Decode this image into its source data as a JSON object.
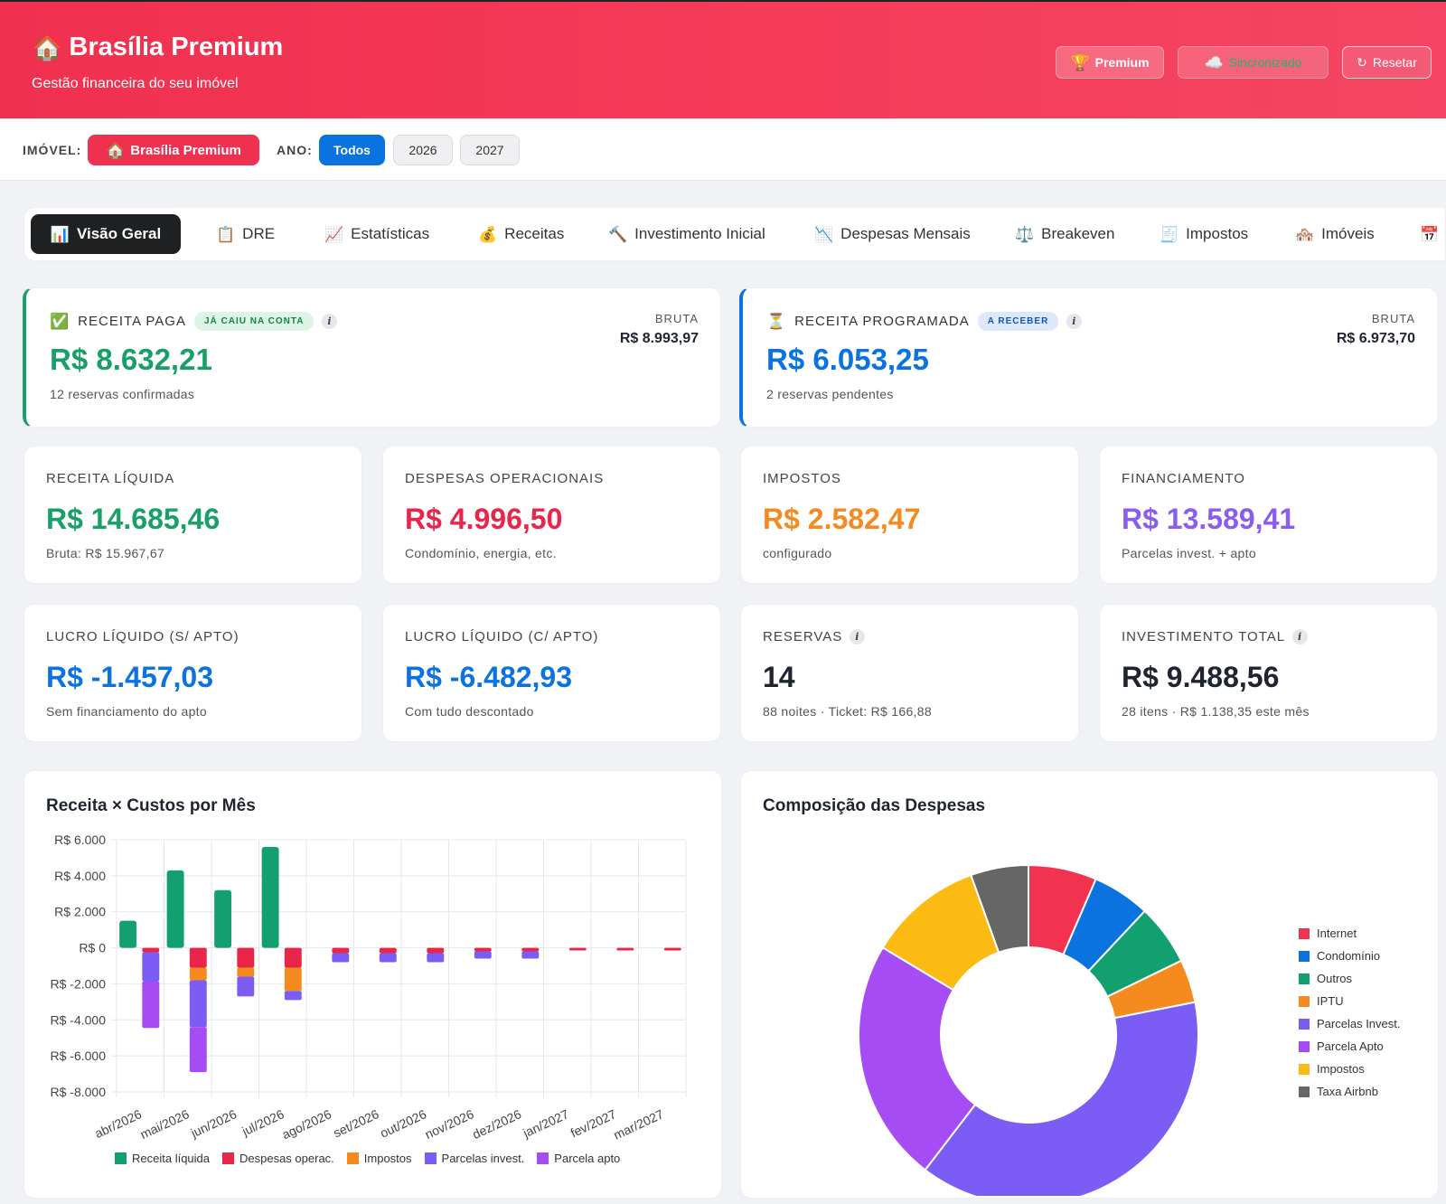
{
  "header": {
    "title": "Brasília Premium",
    "subtitle": "Gestão financeira do seu imóvel",
    "premium_label": "Premium",
    "sync_label": "Sincronizado",
    "reset_label": "Resetar"
  },
  "filters": {
    "property_label": "IMÓVEL:",
    "property_value": "Brasília Premium",
    "year_label": "ANO:",
    "years": [
      "Todos",
      "2026",
      "2027"
    ],
    "active_year": "Todos"
  },
  "tabs": [
    "Visão Geral",
    "DRE",
    "Estatísticas",
    "Receitas",
    "Investimento Inicial",
    "Despesas Mensais",
    "Breakeven",
    "Impostos",
    "Imóveis"
  ],
  "tab_icons": [
    "chart-icon",
    "clipboard-icon",
    "trend-icon",
    "money-bag-icon",
    "hammer-icon",
    "chart-down-icon",
    "scale-icon",
    "receipt-icon",
    "house-icon"
  ],
  "hero": {
    "paid": {
      "label": "RECEITA PAGA",
      "badge": "JÁ CAIU NA CONTA",
      "value": "R$ 8.632,21",
      "sub": "12 reservas confirmadas",
      "bruta_label": "BRUTA",
      "bruta_value": "R$ 8.993,97",
      "color": "#18a068"
    },
    "scheduled": {
      "label": "RECEITA PROGRAMADA",
      "badge": "A RECEBER",
      "value": "R$ 6.053,25",
      "sub": "2 reservas pendentes",
      "bruta_label": "BRUTA",
      "bruta_value": "R$ 6.973,70",
      "color": "#0a73e0"
    }
  },
  "stats": [
    {
      "label": "RECEITA LÍQUIDA",
      "value": "R$ 14.685,46",
      "sub": "Bruta: R$ 15.967,67",
      "color": "#18a068"
    },
    {
      "label": "DESPESAS OPERACIONAIS",
      "value": "R$ 4.996,50",
      "sub": "Condomínio, energia, etc.",
      "color": "#e8264a"
    },
    {
      "label": "IMPOSTOS",
      "value": "R$ 2.582,47",
      "sub": "configurado",
      "color": "#f58a1f"
    },
    {
      "label": "FINANCIAMENTO",
      "value": "R$ 13.589,41",
      "sub": "Parcelas invest. + apto",
      "color": "#8a5cf0"
    },
    {
      "label": "LUCRO LÍQUIDO (S/ APTO)",
      "value": "R$ -1.457,03",
      "sub": "Sem financiamento do apto",
      "color": "#0a73e0"
    },
    {
      "label": "LUCRO LÍQUIDO (C/ APTO)",
      "value": "R$ -6.482,93",
      "sub": "Com tudo descontado",
      "color": "#0a73e0"
    },
    {
      "label": "RESERVAS",
      "value": "14",
      "sub": "88 noites · Ticket: R$ 166,88",
      "color": "#1f2430"
    },
    {
      "label": "INVESTIMENTO TOTAL",
      "value": "R$ 9.488,56",
      "sub": "28 itens · R$ 1.138,35 este mês",
      "color": "#1f2430"
    }
  ],
  "chart_data": [
    {
      "type": "bar",
      "title": "Receita × Custos por Mês",
      "categories": [
        "abr/2026",
        "mai/2026",
        "jun/2026",
        "jul/2026",
        "ago/2026",
        "set/2026",
        "out/2026",
        "nov/2026",
        "dez/2026",
        "jan/2027",
        "fev/2027",
        "mar/2027"
      ],
      "stacked": true,
      "ylim": [
        -8000,
        6000
      ],
      "yticks": [
        6000,
        4000,
        2000,
        0,
        -2000,
        -4000,
        -6000,
        -8000
      ],
      "ytick_labels": [
        "R$ 6.000",
        "R$ 4.000",
        "R$ 2.000",
        "R$ 0",
        "R$ -2.000",
        "R$ -4.000",
        "R$ -6.000",
        "R$ -8.000"
      ],
      "grid": true,
      "legend_position": "bottom",
      "series": [
        {
          "name": "Receita líquida",
          "color": "#12a070",
          "values": [
            1500,
            4300,
            3200,
            5600,
            0,
            0,
            0,
            0,
            0,
            0,
            0,
            0
          ]
        },
        {
          "name": "Despesas operac.",
          "color": "#e8264a",
          "values": [
            -250,
            -1100,
            -1100,
            -1100,
            -300,
            -300,
            -300,
            -200,
            -200,
            -150,
            -150,
            -150
          ]
        },
        {
          "name": "Impostos",
          "color": "#f58a1f",
          "values": [
            0,
            -700,
            -500,
            -1300,
            0,
            0,
            0,
            0,
            0,
            0,
            0,
            0
          ]
        },
        {
          "name": "Parcelas invest.",
          "color": "#7b5cf5",
          "values": [
            -1600,
            -2600,
            -1100,
            -500,
            -500,
            -500,
            -500,
            -400,
            -400,
            0,
            0,
            0
          ]
        },
        {
          "name": "Parcela apto",
          "color": "#a64cf5",
          "values": [
            -2600,
            -2500,
            0,
            0,
            0,
            0,
            0,
            0,
            0,
            0,
            0,
            0
          ]
        }
      ]
    },
    {
      "type": "pie",
      "title": "Composição das Despesas",
      "donut": true,
      "legend_position": "right",
      "labels": [
        "Internet",
        "Condomínio",
        "Outros",
        "IPTU",
        "Parcelas Invest.",
        "Parcela Apto",
        "Impostos",
        "Taxa Airbnb"
      ],
      "colors": [
        "#f2334f",
        "#0a73e0",
        "#12a070",
        "#f58a1f",
        "#7b5cf5",
        "#a64cf5",
        "#fbbb12",
        "#666666"
      ],
      "values": [
        6.5,
        5.5,
        5.8,
        4.1,
        38.5,
        23.2,
        10.9,
        5.5
      ]
    }
  ]
}
